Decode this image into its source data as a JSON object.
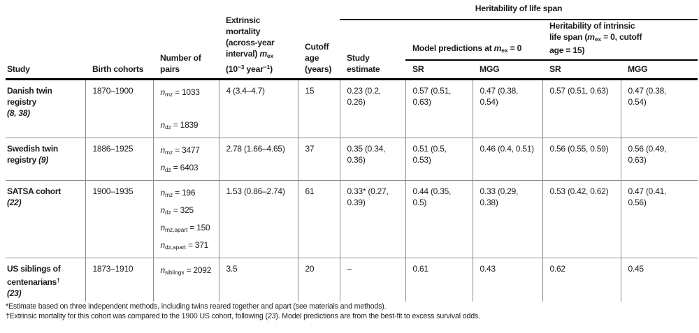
{
  "table": {
    "span_headers": {
      "life_span": "Heritability of life span",
      "model_predictions": [
        {
          "t": "Model predictions at "
        },
        {
          "t": "m",
          "i": true
        },
        {
          "t": "ex",
          "sub": true
        },
        {
          "t": " = 0"
        }
      ],
      "intrinsic": [
        {
          "t": "Heritability of intrinsic\nlife span ("
        },
        {
          "t": "m",
          "i": true
        },
        {
          "t": "ex",
          "sub": true
        },
        {
          "t": " = 0, cutoff\nage = 15)"
        }
      ]
    },
    "col_headers": {
      "study": "Study",
      "birth_cohorts": "Birth cohorts",
      "number_of_pairs": "Number of\npairs",
      "extrinsic_mortality": [
        {
          "t": "Extrinsic\nmortality\n(across-year\ninterval) "
        },
        {
          "t": "m",
          "i": true
        },
        {
          "t": "ex",
          "sub": true
        },
        {
          "t": "\n(10"
        },
        {
          "t": "−3",
          "sup": true
        },
        {
          "t": " year"
        },
        {
          "t": "−1",
          "sup": true
        },
        {
          "t": ")"
        }
      ],
      "cutoff_age": "Cutoff\nage\n(years)",
      "study_estimate": "Study\nestimate",
      "sr_model": "SR",
      "mgg_model": "MGG",
      "sr_intrinsic": "SR",
      "mgg_intrinsic": "MGG"
    },
    "rows": [
      {
        "study": [
          {
            "t": "Danish twin\nregistry\n"
          },
          {
            "t": "(8, 38)",
            "i": true
          }
        ],
        "birth_cohorts": "1870–1900",
        "pairs": [
          {
            "t": "n",
            "i": true
          },
          {
            "t": "mz",
            "sub": true
          },
          {
            "t": " = 1033\n\n"
          },
          {
            "t": "n",
            "i": true
          },
          {
            "t": "dz",
            "sub": true
          },
          {
            "t": " = 1839"
          }
        ],
        "extrinsic_mortality": "4 (3.4–4.7)",
        "cutoff_age": "15",
        "study_estimate": "0.23 (0.2,\n0.26)",
        "sr_model": "0.57 (0.51,\n0.63)",
        "mgg_model": "0.47 (0.38,\n0.54)",
        "sr_intrinsic": "0.57 (0.51, 0.63)",
        "mgg_intrinsic": "0.47 (0.38,\n0.54)"
      },
      {
        "study": [
          {
            "t": "Swedish twin\nregistry "
          },
          {
            "t": "(9)",
            "i": true
          }
        ],
        "birth_cohorts": "1886–1925",
        "pairs": [
          {
            "t": "n",
            "i": true
          },
          {
            "t": "mz",
            "sub": true
          },
          {
            "t": " =  3477\n"
          },
          {
            "t": "n",
            "i": true
          },
          {
            "t": "dz",
            "sub": true
          },
          {
            "t": " = 6403"
          }
        ],
        "extrinsic_mortality": "2.78 (1.66–4.65)",
        "cutoff_age": "37",
        "study_estimate": "0.35 (0.34,\n0.36)",
        "sr_model": "0.51 (0.5,\n0.53)",
        "mgg_model": "0.46 (0.4, 0.51)",
        "sr_intrinsic": "0.56 (0.55, 0.59)",
        "mgg_intrinsic": "0.56 (0.49,\n0.63)"
      },
      {
        "study": [
          {
            "t": "SATSA cohort\n"
          },
          {
            "t": "(22)",
            "i": true
          }
        ],
        "birth_cohorts": "1900–1935",
        "pairs": [
          {
            "t": "n",
            "i": true
          },
          {
            "t": "mz",
            "sub": true
          },
          {
            "t": " = 196\n"
          },
          {
            "t": "n",
            "i": true
          },
          {
            "t": "dz",
            "sub": true
          },
          {
            "t": " = 325\n"
          },
          {
            "t": "n",
            "i": true
          },
          {
            "t": "mz,apart",
            "sub": true
          },
          {
            "t": " = 150\n"
          },
          {
            "t": "n",
            "i": true
          },
          {
            "t": "dz,apart",
            "sub": true
          },
          {
            "t": " = 371"
          }
        ],
        "extrinsic_mortality": "1.53 (0.86–2.74)",
        "cutoff_age": "61",
        "study_estimate": "0.33* (0.27,\n0.39)",
        "sr_model": "0.44 (0.35,\n0.5)",
        "mgg_model": "0.33 (0.29,\n0.38)",
        "sr_intrinsic": "0.53 (0.42, 0.62)",
        "mgg_intrinsic": "0.47 (0.41,\n0.56)"
      },
      {
        "study": [
          {
            "t": "US siblings of\ncentenarians"
          },
          {
            "t": "†",
            "sup": true
          },
          {
            "t": "\n"
          },
          {
            "t": "(23)",
            "i": true
          }
        ],
        "birth_cohorts": "1873–1910",
        "pairs": [
          {
            "t": "n",
            "i": true
          },
          {
            "t": "siblings",
            "sub": true
          },
          {
            "t": " = 2092"
          }
        ],
        "extrinsic_mortality": "3.5",
        "cutoff_age": "20",
        "study_estimate": "–",
        "sr_model": "0.61",
        "mgg_model": "0.43",
        "sr_intrinsic": "0.62",
        "mgg_intrinsic": "0.45"
      }
    ],
    "footnotes": [
      "*Estimate based on three independent methods, including twins reared together and apart (see materials and methods).",
      [
        {
          "t": "†Extrinsic mortality for this cohort was compared to the 1900 US cohort, following ("
        },
        {
          "t": "23",
          "i": true
        },
        {
          "t": "). Model predictions are from the best-fit to excess survival odds."
        }
      ]
    ]
  }
}
